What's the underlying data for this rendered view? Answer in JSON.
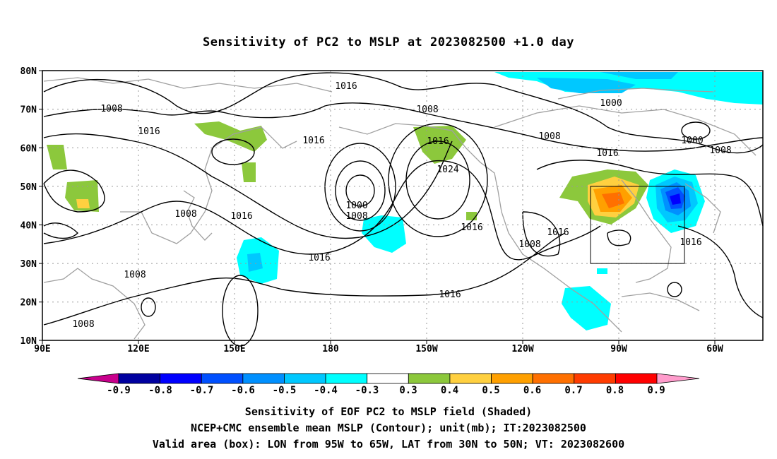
{
  "title": "Sensitivity of PC2 to MSLP at 2023082500 +1.0 day",
  "map": {
    "lat_ticks": [
      "80N",
      "70N",
      "60N",
      "50N",
      "40N",
      "30N",
      "20N",
      "10N"
    ],
    "lon_ticks": [
      "90E",
      "120E",
      "150E",
      "180",
      "150W",
      "120W",
      "90W",
      "60W"
    ],
    "contour_labels": [
      "1016",
      "1008",
      "1016",
      "1008",
      "1000",
      "1000",
      "1008",
      "1016",
      "1008",
      "1016",
      "1024",
      "1016",
      "1000",
      "1008",
      "1016",
      "1008",
      "1016",
      "1016",
      "1016",
      "1008",
      "1016",
      "1016",
      "1008",
      "1008"
    ],
    "box": {
      "lon_from": "95W",
      "lon_to": "65W",
      "lat_from": "30N",
      "lat_to": "50N"
    }
  },
  "colorbar": {
    "labels": [
      "-0.9",
      "-0.8",
      "-0.7",
      "-0.6",
      "-0.5",
      "-0.4",
      "-0.3",
      "0.3",
      "0.4",
      "0.5",
      "0.6",
      "0.7",
      "0.8",
      "0.9"
    ],
    "colors": [
      "#0000a0",
      "#0000ff",
      "#0050ff",
      "#0090ff",
      "#00c8ff",
      "#00ffff",
      "#ffffff",
      "#8cc83c",
      "#ffd040",
      "#ffa000",
      "#ff7000",
      "#ff3c00",
      "#ff0000"
    ],
    "end_colors": [
      "#c8008c",
      "#ff9ccc"
    ]
  },
  "caption": {
    "line1": "Sensitivity of EOF PC2 to MSLP field (Shaded)",
    "line2": "NCEP+CMC ensemble mean MSLP (Contour); unit(mb); IT:2023082500",
    "line3": "Valid area (box): LON from 95W to 65W, LAT from 30N to 50N; VT: 2023082600"
  }
}
